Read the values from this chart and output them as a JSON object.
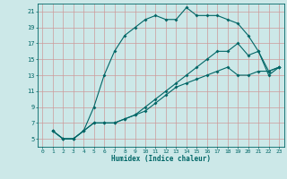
{
  "xlabel": "Humidex (Indice chaleur)",
  "bg_color": "#cce8e8",
  "grid_color": "#cc9999",
  "line_color": "#006666",
  "xlim": [
    -0.5,
    23.5
  ],
  "ylim": [
    4,
    22
  ],
  "xticks": [
    0,
    1,
    2,
    3,
    4,
    5,
    6,
    7,
    8,
    9,
    10,
    11,
    12,
    13,
    14,
    15,
    16,
    17,
    18,
    19,
    20,
    21,
    22,
    23
  ],
  "yticks": [
    5,
    7,
    9,
    11,
    13,
    15,
    17,
    19,
    21
  ],
  "line1_x": [
    1,
    2,
    3,
    4,
    5,
    6,
    7,
    8,
    9,
    10,
    11,
    12,
    13,
    14,
    15,
    16,
    17,
    18,
    19,
    20,
    21,
    22,
    23
  ],
  "line1_y": [
    6,
    5,
    5,
    6,
    9,
    13,
    16,
    18,
    19,
    20,
    20.5,
    20,
    20,
    21.5,
    20.5,
    20.5,
    20.5,
    20,
    19.5,
    18,
    16,
    13,
    14
  ],
  "line2_x": [
    1,
    2,
    3,
    4,
    5,
    6,
    7,
    8,
    9,
    10,
    11,
    12,
    13,
    14,
    15,
    16,
    17,
    18,
    19,
    20,
    21,
    22,
    23
  ],
  "line2_y": [
    6,
    5,
    5,
    6,
    7,
    7,
    7,
    7.5,
    8,
    9,
    10,
    11,
    12,
    13,
    14,
    15,
    16,
    16,
    17,
    15.5,
    16,
    13.5,
    14
  ],
  "line3_x": [
    1,
    2,
    3,
    4,
    5,
    6,
    7,
    8,
    9,
    10,
    11,
    12,
    13,
    14,
    15,
    16,
    17,
    18,
    19,
    20,
    21,
    22,
    23
  ],
  "line3_y": [
    6,
    5,
    5,
    6,
    7,
    7,
    7,
    7.5,
    8,
    8.5,
    9.5,
    10.5,
    11.5,
    12,
    12.5,
    13,
    13.5,
    14,
    13,
    13,
    13.5,
    13.5,
    14
  ]
}
